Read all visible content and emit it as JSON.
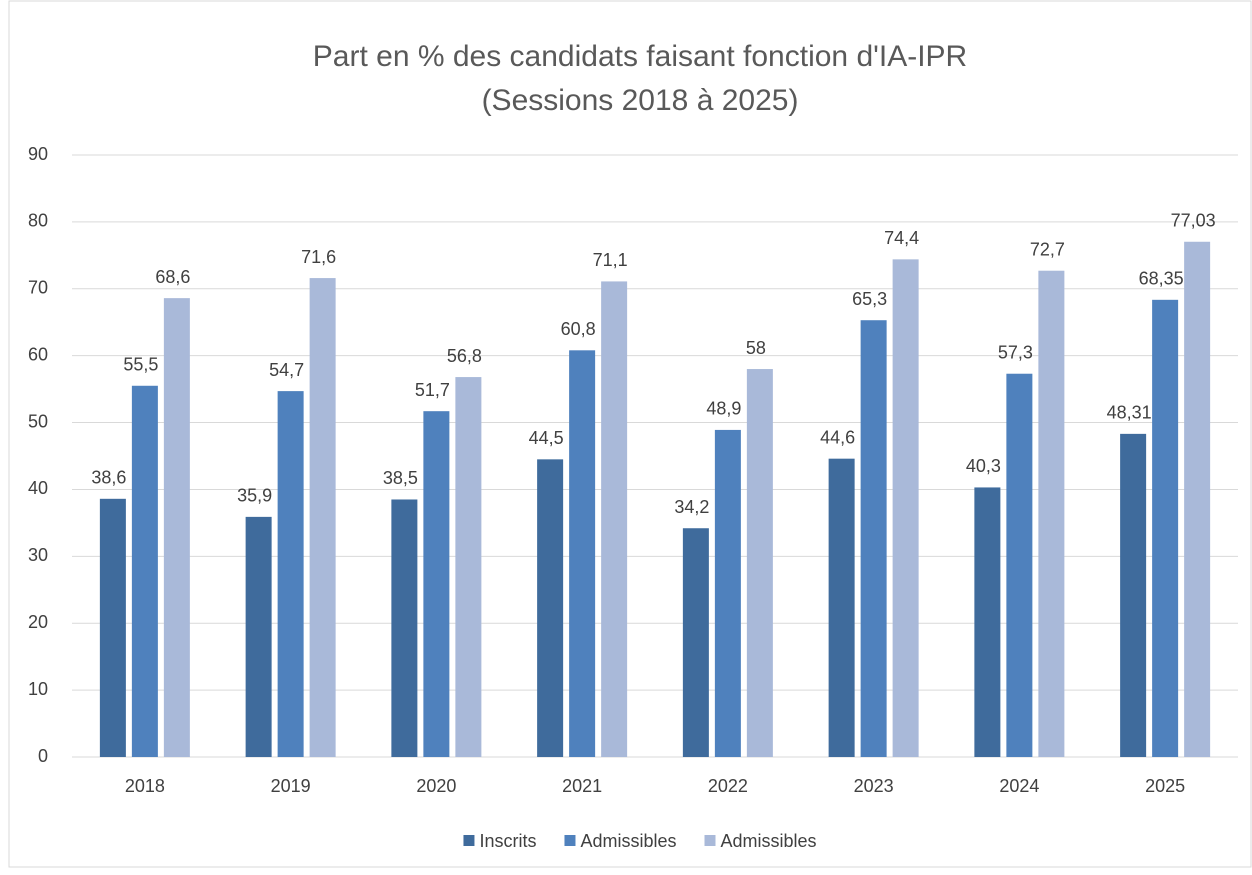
{
  "chart_data": {
    "type": "bar",
    "title": "Part en % des candidats faisant fonction d'IA-IPR",
    "subtitle": "(Sessions 2018 à 2025)",
    "categories": [
      "2018",
      "2019",
      "2020",
      "2021",
      "2022",
      "2023",
      "2024",
      "2025"
    ],
    "series": [
      {
        "name": "Inscrits",
        "color": "#3f6b9c",
        "values": [
          38.6,
          35.9,
          38.5,
          44.5,
          34.2,
          44.6,
          40.3,
          48.31
        ],
        "value_labels": [
          "38,6",
          "35,9",
          "38,5",
          "44,5",
          "34,2",
          "44,6",
          "40,3",
          "48,31"
        ]
      },
      {
        "name": "Admissibles",
        "color": "#4f81bd",
        "values": [
          55.5,
          54.7,
          51.7,
          60.8,
          48.9,
          65.3,
          57.3,
          68.35
        ],
        "value_labels": [
          "55,5",
          "54,7",
          "51,7",
          "60,8",
          "48,9",
          "65,3",
          "57,3",
          "68,35"
        ]
      },
      {
        "name": "Admissibles",
        "color": "#a9b9d9",
        "values": [
          68.6,
          71.6,
          56.8,
          71.1,
          58,
          74.4,
          72.7,
          77.03
        ],
        "value_labels": [
          "68,6",
          "71,6",
          "56,8",
          "71,1",
          "58",
          "74,4",
          "72,7",
          "77,03"
        ]
      }
    ],
    "ylim": [
      0,
      90
    ],
    "yticks": [
      0,
      10,
      20,
      30,
      40,
      50,
      60,
      70,
      80,
      90
    ],
    "grid": true,
    "legend": "bottom"
  }
}
